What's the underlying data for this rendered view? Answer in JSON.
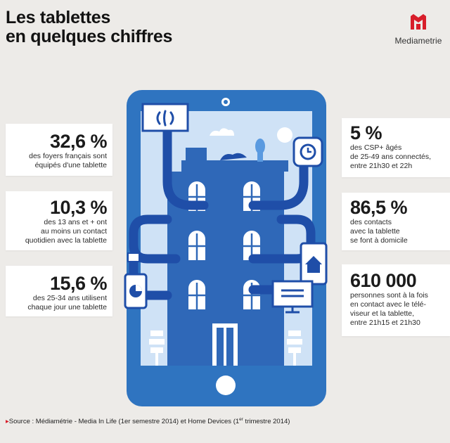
{
  "title": {
    "line1": "Les tablettes",
    "line2": "en quelques chiffres"
  },
  "logo": {
    "letter": "M",
    "name": "Mediametrie"
  },
  "stats_left": [
    {
      "value": "32,6 %",
      "lines": [
        "des foyers français sont",
        "équipés d'une tablette"
      ]
    },
    {
      "value": "10,3 %",
      "lines": [
        "des 13 ans et + ont",
        "au moins un contact",
        "quotidien avec la tablette"
      ]
    },
    {
      "value": "15,6 %",
      "lines": [
        "des 25-34 ans utilisent",
        "chaque jour une tablette"
      ]
    }
  ],
  "stats_right": [
    {
      "value": "5 %",
      "lines": [
        "des CSP+ âgés",
        "de 25-49 ans connectés,",
        "entre 21h30 et 22h"
      ]
    },
    {
      "value": "86,5 %",
      "lines": [
        "des contacts",
        "avec la tablette",
        "se font à domicile"
      ]
    },
    {
      "value": "610 000",
      "lines": [
        "personnes sont à la fois",
        "en contact avec le télé-",
        "viseur et la tablette,",
        "entre 21h15 et 21h30"
      ]
    }
  ],
  "source": {
    "prefix": "Source : Médiamétrie - Media In Life (1er semestre 2014) et Home Devices (1",
    "sup": "er",
    "suffix": " trimestre 2014)"
  },
  "colors": {
    "background": "#edebe8",
    "tablet": "#2f74c0",
    "screen": "#cfe2f6",
    "building": "#2f68b8",
    "pipe": "#1f4ea8",
    "accent_red": "#d81e2a"
  },
  "icons": [
    "mediametrie-logo-icon",
    "camera-icon",
    "home-button-icon",
    "wifi-icon",
    "clock-icon",
    "pie-chart-icon",
    "house-icon",
    "tv-icon",
    "tree-icon",
    "source-marker-icon"
  ]
}
